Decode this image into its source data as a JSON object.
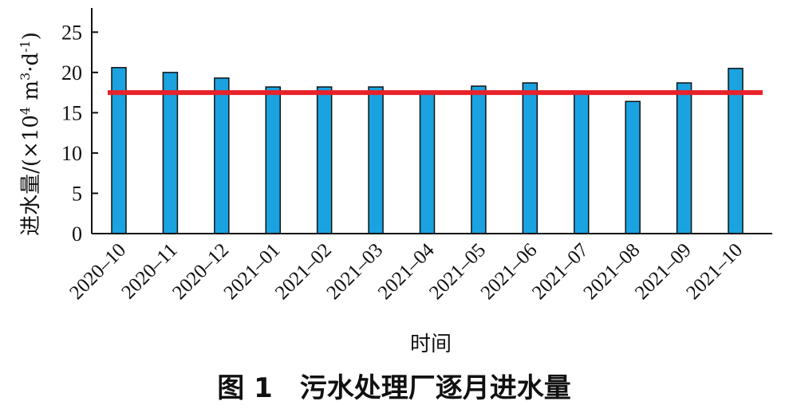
{
  "chart_data": {
    "type": "bar",
    "categories": [
      "2020–10",
      "2020–11",
      "2020–12",
      "2021–01",
      "2021–02",
      "2021–03",
      "2021–04",
      "2021–05",
      "2021–06",
      "2021–07",
      "2021–08",
      "2021–09",
      "2021–10"
    ],
    "values": [
      20.6,
      20.0,
      19.3,
      18.2,
      18.2,
      18.2,
      17.5,
      18.3,
      18.7,
      17.5,
      16.4,
      18.7,
      20.5
    ],
    "reference_line": 17.5,
    "xlabel": "时间",
    "ylabel_main": "进水量/(×10",
    "ylabel_exp1": "4",
    "ylabel_unit": " m",
    "ylabel_exp2": "3",
    "ylabel_tail": "·d",
    "ylabel_exp3": "-1",
    "ylabel_close": ")",
    "ylim": [
      0,
      28
    ],
    "yticks": [
      0,
      5,
      10,
      15,
      20,
      25
    ],
    "bar_color": "#1aa3e0",
    "reference_color": "#e8212a",
    "grid": false,
    "legend": "none"
  },
  "caption": "图 1　污水处理厂逐月进水量"
}
